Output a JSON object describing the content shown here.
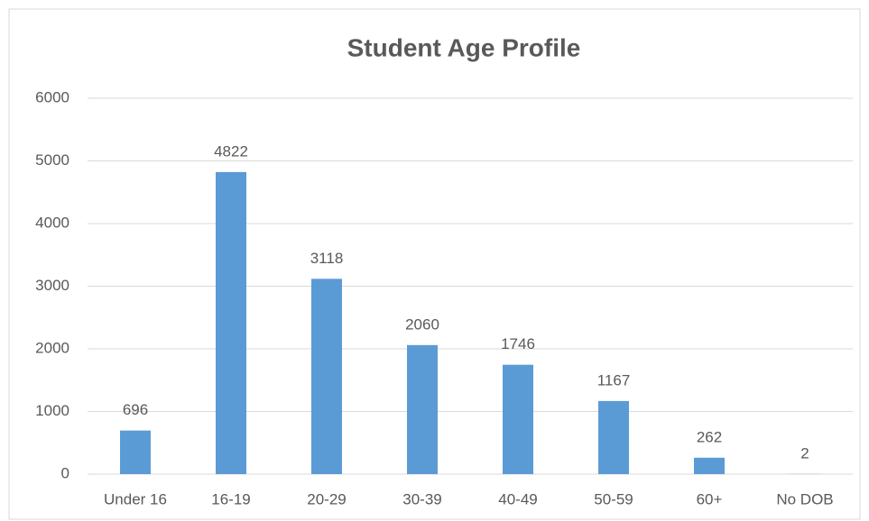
{
  "chart_data": {
    "type": "bar",
    "title": "Student Age Profile",
    "categories": [
      "Under 16",
      "16-19",
      "20-29",
      "30-39",
      "40-49",
      "50-59",
      "60+",
      "No DOB"
    ],
    "values": [
      696,
      4822,
      3118,
      2060,
      1746,
      1167,
      262,
      2
    ],
    "color": "#5b9bd5",
    "ylim": [
      0,
      6000
    ],
    "yticks": [
      0,
      1000,
      2000,
      3000,
      4000,
      5000,
      6000
    ],
    "grid": true
  }
}
